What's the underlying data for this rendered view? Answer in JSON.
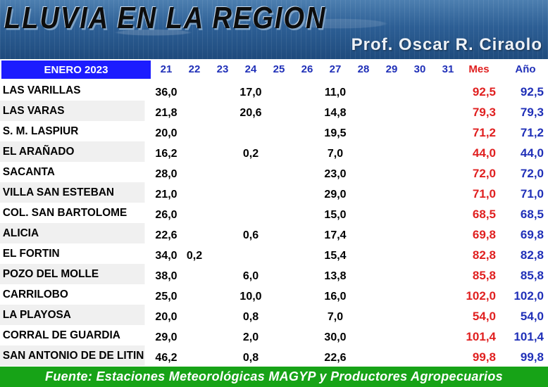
{
  "banner": {
    "title": "LLUVIA EN LA REGION",
    "author": "Prof. Oscar R. Ciraolo"
  },
  "header": {
    "month": "ENERO 2023",
    "days": [
      "21",
      "22",
      "23",
      "24",
      "25",
      "26",
      "27",
      "28",
      "29",
      "30",
      "31"
    ],
    "mes_label": "Mes",
    "anio_label": "Año"
  },
  "rows": [
    {
      "name": "LAS VARILLAS",
      "values": [
        "36,0",
        "",
        "",
        "17,0",
        "",
        "",
        "11,0",
        "",
        "",
        "",
        ""
      ],
      "mes": "92,5",
      "anio": "92,5"
    },
    {
      "name": "LAS VARAS",
      "values": [
        "21,8",
        "",
        "",
        "20,6",
        "",
        "",
        "14,8",
        "",
        "",
        "",
        ""
      ],
      "mes": "79,3",
      "anio": "79,3"
    },
    {
      "name": "S. M. LASPIUR",
      "values": [
        "20,0",
        "",
        "",
        "",
        "",
        "",
        "19,5",
        "",
        "",
        "",
        ""
      ],
      "mes": "71,2",
      "anio": "71,2"
    },
    {
      "name": "EL ARAÑADO",
      "values": [
        "16,2",
        "",
        "",
        "0,2",
        "",
        "",
        "7,0",
        "",
        "",
        "",
        ""
      ],
      "mes": "44,0",
      "anio": "44,0"
    },
    {
      "name": "SACANTA",
      "values": [
        "28,0",
        "",
        "",
        "",
        "",
        "",
        "23,0",
        "",
        "",
        "",
        ""
      ],
      "mes": "72,0",
      "anio": "72,0"
    },
    {
      "name": "VILLA SAN ESTEBAN",
      "values": [
        "21,0",
        "",
        "",
        "",
        "",
        "",
        "29,0",
        "",
        "",
        "",
        ""
      ],
      "mes": "71,0",
      "anio": "71,0"
    },
    {
      "name": "COL. SAN BARTOLOME",
      "values": [
        "26,0",
        "",
        "",
        "",
        "",
        "",
        "15,0",
        "",
        "",
        "",
        ""
      ],
      "mes": "68,5",
      "anio": "68,5"
    },
    {
      "name": "ALICIA",
      "values": [
        "22,6",
        "",
        "",
        "0,6",
        "",
        "",
        "17,4",
        "",
        "",
        "",
        ""
      ],
      "mes": "69,8",
      "anio": "69,8"
    },
    {
      "name": "EL FORTIN",
      "values": [
        "34,0",
        "0,2",
        "",
        "",
        "",
        "",
        "15,4",
        "",
        "",
        "",
        ""
      ],
      "mes": "82,8",
      "anio": "82,8"
    },
    {
      "name": "POZO DEL MOLLE",
      "values": [
        "38,0",
        "",
        "",
        "6,0",
        "",
        "",
        "13,8",
        "",
        "",
        "",
        ""
      ],
      "mes": "85,8",
      "anio": "85,8"
    },
    {
      "name": "CARRILOBO",
      "values": [
        "25,0",
        "",
        "",
        "10,0",
        "",
        "",
        "16,0",
        "",
        "",
        "",
        ""
      ],
      "mes": "102,0",
      "anio": "102,0"
    },
    {
      "name": "LA PLAYOSA",
      "values": [
        "20,0",
        "",
        "",
        "0,8",
        "",
        "",
        "7,0",
        "",
        "",
        "",
        ""
      ],
      "mes": "54,0",
      "anio": "54,0"
    },
    {
      "name": "CORRAL DE GUARDIA",
      "values": [
        "29,0",
        "",
        "",
        "2,0",
        "",
        "",
        "30,0",
        "",
        "",
        "",
        ""
      ],
      "mes": "101,4",
      "anio": "101,4"
    },
    {
      "name": "SAN ANTONIO DE DE LITIN",
      "values": [
        "46,2",
        "",
        "",
        "0,8",
        "",
        "",
        "22,6",
        "",
        "",
        "",
        ""
      ],
      "mes": "99,8",
      "anio": "99,8"
    }
  ],
  "footer": {
    "source": "Fuente: Estaciones Meteorológicas MAGYP y Productores Agropecuarios"
  },
  "colors": {
    "month_cell_bg": "#1c1cff",
    "mes_text": "#e02020",
    "anio_text": "#2030b8",
    "footer_bg": "#17a317"
  }
}
